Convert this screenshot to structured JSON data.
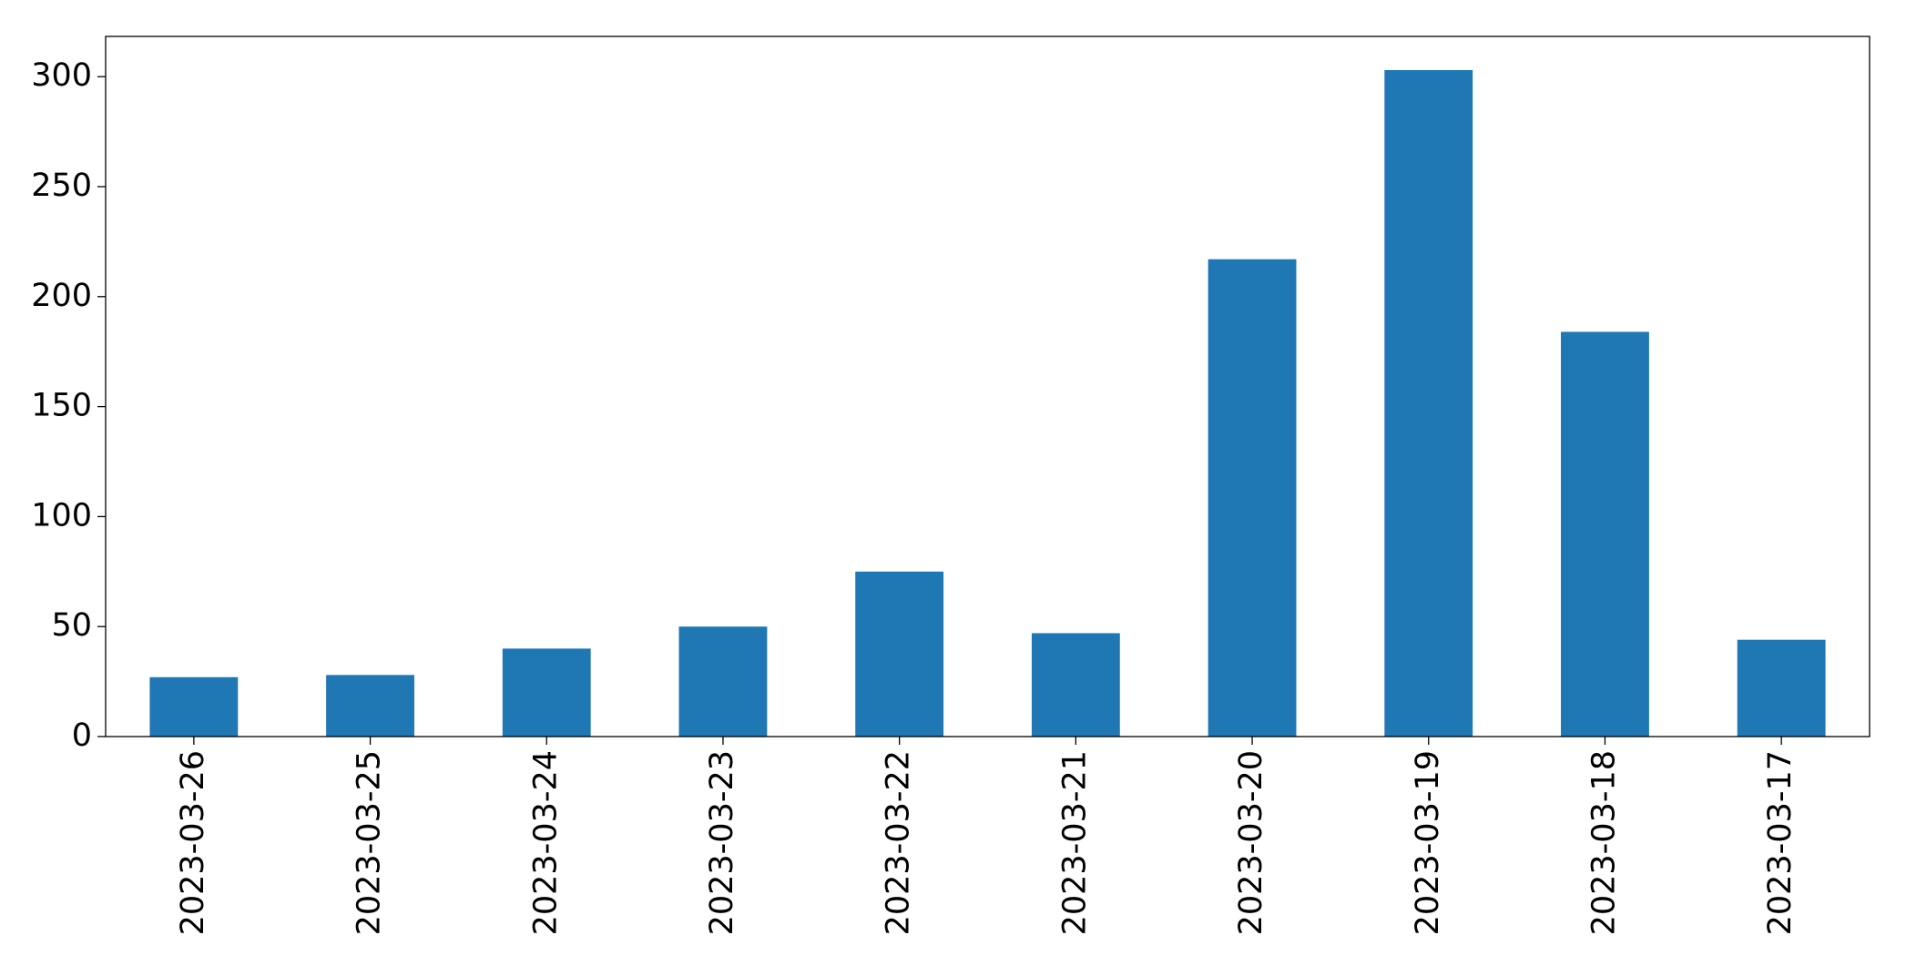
{
  "chart_data": {
    "type": "bar",
    "categories": [
      "2023-03-26",
      "2023-03-25",
      "2023-03-24",
      "2023-03-23",
      "2023-03-22",
      "2023-03-21",
      "2023-03-20",
      "2023-03-19",
      "2023-03-18",
      "2023-03-17"
    ],
    "values": [
      27,
      28,
      40,
      50,
      75,
      47,
      217,
      303,
      184,
      44
    ],
    "color": "#1f77b4",
    "ylim": [
      0,
      318.3
    ],
    "yticks": [
      0,
      50,
      100,
      150,
      200,
      250,
      300
    ],
    "grid": false
  }
}
